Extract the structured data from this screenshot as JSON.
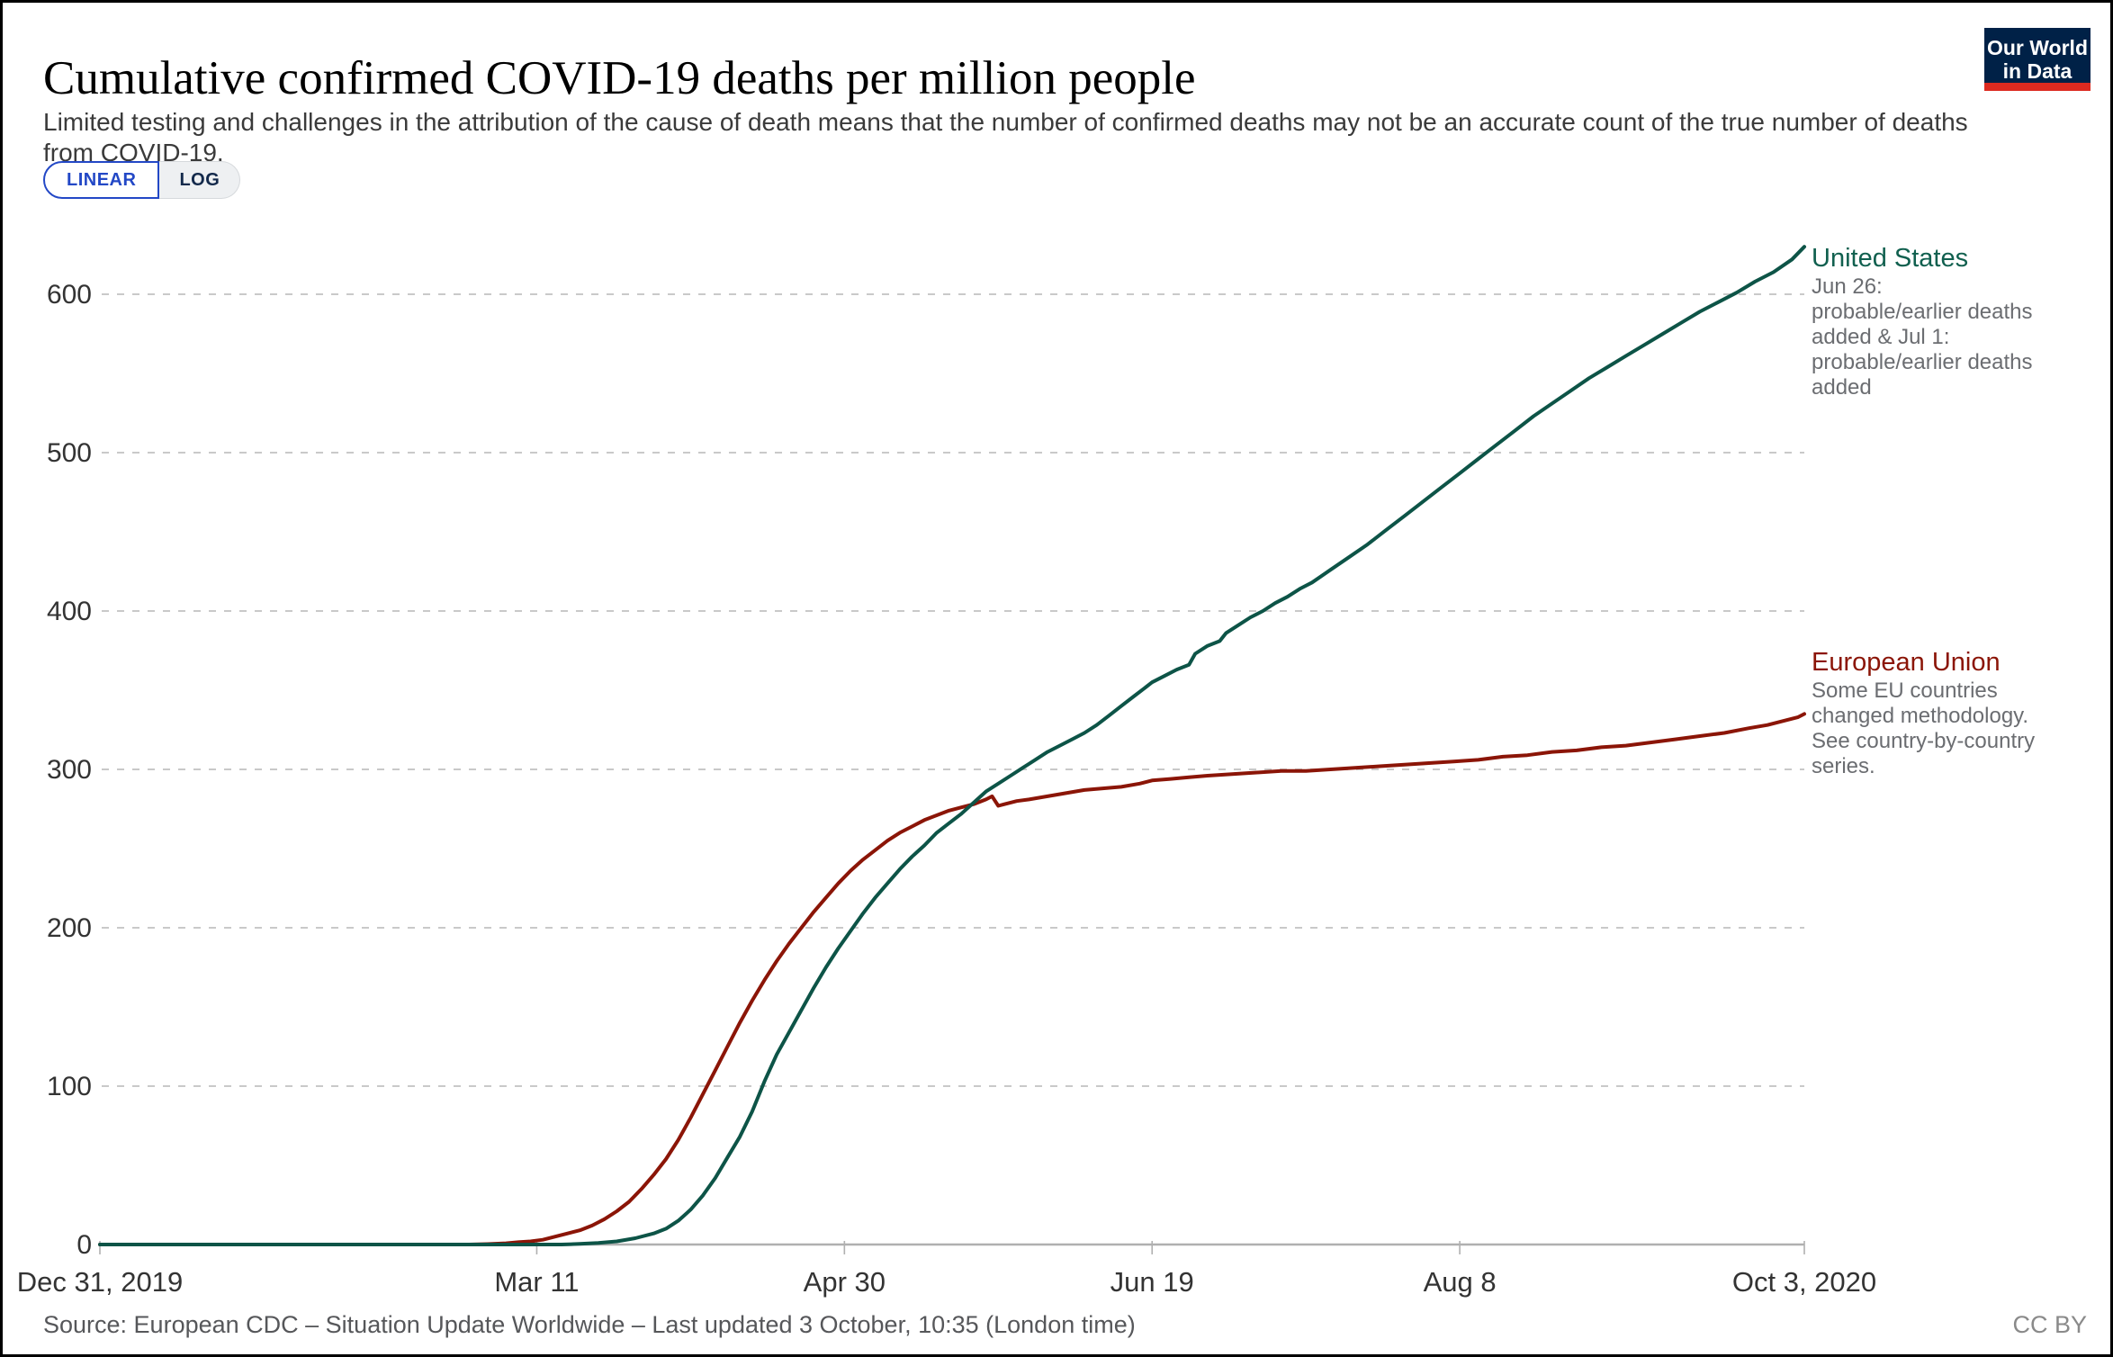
{
  "header": {
    "title": "Cumulative confirmed COVID-19 deaths per million people",
    "subtitle": "Limited testing and challenges in the attribution of the cause of death means that the number of confirmed deaths may not be an accurate count of the true number of deaths from COVID-19.",
    "logo": {
      "line1": "Our World",
      "line2": "in Data"
    }
  },
  "controls": {
    "linear_label": "LINEAR",
    "log_label": "LOG",
    "active": "LINEAR"
  },
  "footer": {
    "source": "Source: European CDC – Situation Update Worldwide – Last updated 3 October, 10:35 (London time)",
    "license": "CC BY"
  },
  "colors": {
    "us_line": "#0d5447",
    "us_label": "#11604f",
    "eu_line": "#8b1507",
    "eu_label": "#8b1507",
    "gridline": "#c9c9c9",
    "axis_line": "#b0b0b0",
    "tick_label": "#333333",
    "annotation": "#6b6d71",
    "accent_blue": "#2348c6",
    "logo_navy": "#002147",
    "logo_red": "#dc2a20"
  },
  "chart_data": {
    "type": "line",
    "title": "Cumulative confirmed COVID-19 deaths per million people",
    "xlabel": "",
    "ylabel": "Cumulative confirmed COVID-19 deaths per million people",
    "x_axis": {
      "unit": "date",
      "range_days": [
        0,
        277
      ],
      "ticks": [
        {
          "day": 0,
          "label": "Dec 31, 2019"
        },
        {
          "day": 71,
          "label": "Mar 11"
        },
        {
          "day": 121,
          "label": "Apr 30"
        },
        {
          "day": 171,
          "label": "Jun 19"
        },
        {
          "day": 221,
          "label": "Aug 8"
        },
        {
          "day": 277,
          "label": "Oct 3, 2020"
        }
      ]
    },
    "y_axis": {
      "ticks": [
        0,
        100,
        200,
        300,
        400,
        500,
        600
      ],
      "range": [
        0,
        650
      ],
      "gridlines": "dashed"
    },
    "legend_position": "right-of-line-end",
    "series": [
      {
        "name": "European Union",
        "color": "#8b1507",
        "annotation": "Some EU countries changed methodology. See country-by-country series.",
        "end_value": 335,
        "points": [
          [
            0,
            0
          ],
          [
            15,
            0
          ],
          [
            30,
            0
          ],
          [
            45,
            0
          ],
          [
            55,
            0
          ],
          [
            60,
            0
          ],
          [
            63,
            0.3
          ],
          [
            66,
            0.8
          ],
          [
            68,
            1.5
          ],
          [
            70,
            2
          ],
          [
            72,
            3
          ],
          [
            74,
            5
          ],
          [
            76,
            7
          ],
          [
            78,
            9
          ],
          [
            80,
            12
          ],
          [
            82,
            16
          ],
          [
            84,
            21
          ],
          [
            86,
            27
          ],
          [
            88,
            35
          ],
          [
            90,
            44
          ],
          [
            92,
            54
          ],
          [
            94,
            66
          ],
          [
            96,
            80
          ],
          [
            98,
            95
          ],
          [
            100,
            110
          ],
          [
            102,
            125
          ],
          [
            104,
            140
          ],
          [
            106,
            154
          ],
          [
            108,
            167
          ],
          [
            110,
            179
          ],
          [
            112,
            190
          ],
          [
            114,
            200
          ],
          [
            116,
            210
          ],
          [
            118,
            219
          ],
          [
            120,
            228
          ],
          [
            122,
            236
          ],
          [
            124,
            243
          ],
          [
            126,
            249
          ],
          [
            128,
            255
          ],
          [
            130,
            260
          ],
          [
            132,
            264
          ],
          [
            134,
            268
          ],
          [
            136,
            271
          ],
          [
            138,
            274
          ],
          [
            140,
            276
          ],
          [
            142,
            278
          ],
          [
            144,
            281
          ],
          [
            145,
            283
          ],
          [
            146,
            277
          ],
          [
            147,
            278
          ],
          [
            149,
            280
          ],
          [
            151,
            281
          ],
          [
            154,
            283
          ],
          [
            157,
            285
          ],
          [
            160,
            287
          ],
          [
            163,
            288
          ],
          [
            166,
            289
          ],
          [
            169,
            291
          ],
          [
            171,
            293
          ],
          [
            174,
            294
          ],
          [
            177,
            295
          ],
          [
            180,
            296
          ],
          [
            184,
            297
          ],
          [
            188,
            298
          ],
          [
            192,
            299
          ],
          [
            196,
            299
          ],
          [
            200,
            300
          ],
          [
            204,
            301
          ],
          [
            208,
            302
          ],
          [
            212,
            303
          ],
          [
            216,
            304
          ],
          [
            220,
            305
          ],
          [
            224,
            306
          ],
          [
            228,
            308
          ],
          [
            232,
            309
          ],
          [
            236,
            311
          ],
          [
            240,
            312
          ],
          [
            244,
            314
          ],
          [
            248,
            315
          ],
          [
            252,
            317
          ],
          [
            256,
            319
          ],
          [
            260,
            321
          ],
          [
            264,
            323
          ],
          [
            268,
            326
          ],
          [
            271,
            328
          ],
          [
            274,
            331
          ],
          [
            276,
            333
          ],
          [
            277,
            335
          ]
        ]
      },
      {
        "name": "United States",
        "color": "#0d5447",
        "annotation": "Jun 26: probable/earlier deaths added & Jul 1: probable/earlier deaths added",
        "end_value": 630,
        "points": [
          [
            0,
            0
          ],
          [
            15,
            0
          ],
          [
            30,
            0
          ],
          [
            45,
            0
          ],
          [
            60,
            0
          ],
          [
            70,
            0
          ],
          [
            75,
            0
          ],
          [
            78,
            0.4
          ],
          [
            81,
            1
          ],
          [
            84,
            2
          ],
          [
            87,
            4
          ],
          [
            90,
            7
          ],
          [
            92,
            10
          ],
          [
            94,
            15
          ],
          [
            96,
            22
          ],
          [
            98,
            31
          ],
          [
            100,
            42
          ],
          [
            102,
            55
          ],
          [
            104,
            68
          ],
          [
            106,
            84
          ],
          [
            108,
            103
          ],
          [
            110,
            120
          ],
          [
            112,
            134
          ],
          [
            114,
            148
          ],
          [
            116,
            162
          ],
          [
            118,
            175
          ],
          [
            120,
            187
          ],
          [
            122,
            198
          ],
          [
            124,
            209
          ],
          [
            126,
            219
          ],
          [
            128,
            228
          ],
          [
            130,
            237
          ],
          [
            132,
            245
          ],
          [
            134,
            252
          ],
          [
            136,
            260
          ],
          [
            138,
            266
          ],
          [
            140,
            272
          ],
          [
            142,
            279
          ],
          [
            144,
            286
          ],
          [
            146,
            291
          ],
          [
            148,
            296
          ],
          [
            150,
            301
          ],
          [
            152,
            306
          ],
          [
            154,
            311
          ],
          [
            156,
            315
          ],
          [
            158,
            319
          ],
          [
            160,
            323
          ],
          [
            162,
            328
          ],
          [
            164,
            334
          ],
          [
            166,
            340
          ],
          [
            168,
            346
          ],
          [
            170,
            352
          ],
          [
            171,
            355
          ],
          [
            173,
            359
          ],
          [
            175,
            363
          ],
          [
            177,
            366
          ],
          [
            178,
            373
          ],
          [
            180,
            378
          ],
          [
            182,
            381
          ],
          [
            183,
            386
          ],
          [
            185,
            391
          ],
          [
            187,
            396
          ],
          [
            189,
            400
          ],
          [
            191,
            405
          ],
          [
            193,
            409
          ],
          [
            195,
            414
          ],
          [
            197,
            418
          ],
          [
            200,
            426
          ],
          [
            203,
            434
          ],
          [
            206,
            442
          ],
          [
            209,
            451
          ],
          [
            212,
            460
          ],
          [
            215,
            469
          ],
          [
            218,
            478
          ],
          [
            221,
            487
          ],
          [
            224,
            496
          ],
          [
            227,
            505
          ],
          [
            230,
            514
          ],
          [
            233,
            523
          ],
          [
            236,
            531
          ],
          [
            239,
            539
          ],
          [
            242,
            547
          ],
          [
            245,
            554
          ],
          [
            248,
            561
          ],
          [
            251,
            568
          ],
          [
            254,
            575
          ],
          [
            257,
            582
          ],
          [
            260,
            589
          ],
          [
            263,
            595
          ],
          [
            266,
            601
          ],
          [
            269,
            608
          ],
          [
            272,
            614
          ],
          [
            275,
            622
          ],
          [
            277,
            630
          ]
        ]
      }
    ]
  }
}
